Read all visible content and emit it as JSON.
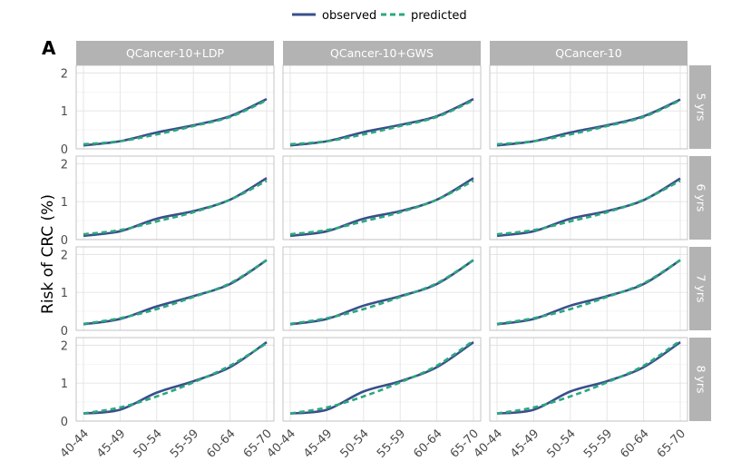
{
  "chart_data": {
    "type": "line",
    "panel_label": "A",
    "ylabel": "Risk of CRC (%)",
    "xlabel": "",
    "categories": [
      "40-44",
      "45-49",
      "50-54",
      "55-59",
      "60-64",
      "65-70"
    ],
    "ylim": [
      0,
      2.2
    ],
    "yticks": [
      0,
      1,
      2
    ],
    "legend": {
      "position": "top",
      "entries": [
        {
          "name": "observed",
          "color": "#3a4f8a",
          "dash": "solid"
        },
        {
          "name": "predicted",
          "color": "#2aa87e",
          "dash": "dashed"
        }
      ]
    },
    "columns": [
      "QCancer-10+LDP",
      "QCancer-10+GWS",
      "QCancer-10"
    ],
    "rows": [
      "5 yrs",
      "6 yrs",
      "7 yrs",
      "8 yrs"
    ],
    "panels": [
      {
        "row": 0,
        "col": 0,
        "observed": [
          0.09,
          0.2,
          0.43,
          0.62,
          0.86,
          1.31
        ],
        "predicted": [
          0.12,
          0.2,
          0.38,
          0.6,
          0.84,
          1.28
        ]
      },
      {
        "row": 0,
        "col": 1,
        "observed": [
          0.09,
          0.2,
          0.44,
          0.63,
          0.86,
          1.31
        ],
        "predicted": [
          0.12,
          0.2,
          0.38,
          0.6,
          0.84,
          1.28
        ]
      },
      {
        "row": 0,
        "col": 2,
        "observed": [
          0.09,
          0.2,
          0.43,
          0.62,
          0.86,
          1.3
        ],
        "predicted": [
          0.12,
          0.2,
          0.38,
          0.6,
          0.84,
          1.28
        ]
      },
      {
        "row": 1,
        "col": 0,
        "observed": [
          0.1,
          0.22,
          0.55,
          0.75,
          1.05,
          1.62
        ],
        "predicted": [
          0.14,
          0.25,
          0.48,
          0.72,
          1.05,
          1.55
        ]
      },
      {
        "row": 1,
        "col": 1,
        "observed": [
          0.1,
          0.22,
          0.55,
          0.75,
          1.05,
          1.62
        ],
        "predicted": [
          0.14,
          0.25,
          0.48,
          0.72,
          1.05,
          1.55
        ]
      },
      {
        "row": 1,
        "col": 2,
        "observed": [
          0.1,
          0.22,
          0.55,
          0.75,
          1.04,
          1.61
        ],
        "predicted": [
          0.14,
          0.25,
          0.48,
          0.72,
          1.05,
          1.55
        ]
      },
      {
        "row": 2,
        "col": 0,
        "observed": [
          0.16,
          0.3,
          0.63,
          0.9,
          1.22,
          1.85
        ],
        "predicted": [
          0.17,
          0.32,
          0.56,
          0.88,
          1.24,
          1.85
        ]
      },
      {
        "row": 2,
        "col": 1,
        "observed": [
          0.16,
          0.3,
          0.65,
          0.9,
          1.22,
          1.85
        ],
        "predicted": [
          0.17,
          0.32,
          0.56,
          0.88,
          1.24,
          1.85
        ]
      },
      {
        "row": 2,
        "col": 2,
        "observed": [
          0.16,
          0.3,
          0.65,
          0.9,
          1.22,
          1.85
        ],
        "predicted": [
          0.17,
          0.32,
          0.56,
          0.88,
          1.24,
          1.85
        ]
      },
      {
        "row": 3,
        "col": 0,
        "observed": [
          0.2,
          0.3,
          0.75,
          1.05,
          1.42,
          2.08
        ],
        "predicted": [
          0.2,
          0.36,
          0.65,
          1.02,
          1.46,
          2.05
        ]
      },
      {
        "row": 3,
        "col": 1,
        "observed": [
          0.2,
          0.3,
          0.78,
          1.05,
          1.42,
          2.08
        ],
        "predicted": [
          0.2,
          0.36,
          0.65,
          1.02,
          1.46,
          2.12
        ]
      },
      {
        "row": 3,
        "col": 2,
        "observed": [
          0.2,
          0.3,
          0.78,
          1.05,
          1.42,
          2.08
        ],
        "predicted": [
          0.2,
          0.36,
          0.65,
          1.02,
          1.46,
          2.12
        ]
      }
    ]
  }
}
